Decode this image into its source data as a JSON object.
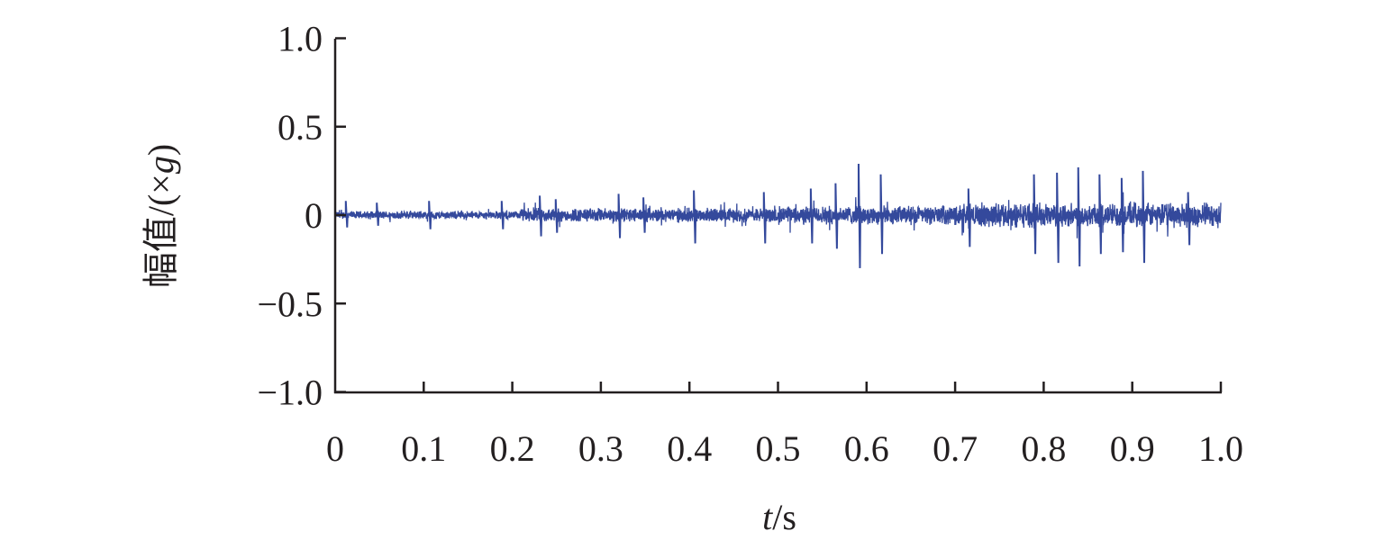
{
  "chart_data": {
    "type": "line",
    "title": "",
    "xlabel": "t/s",
    "xlabel_parts": {
      "var": "t",
      "unit": "/s"
    },
    "ylabel": "幅值/(×g)",
    "ylabel_parts": {
      "text": "幅值/(×",
      "var": "g",
      "close": ")"
    },
    "xlim": [
      0,
      1.0
    ],
    "ylim": [
      -1.0,
      1.0
    ],
    "x_ticks": [
      "0",
      "0.1",
      "0.2",
      "0.3",
      "0.4",
      "0.5",
      "0.6",
      "0.7",
      "0.8",
      "0.9",
      "1.0"
    ],
    "y_ticks": [
      "1.0",
      "0.5",
      "0",
      "−0.5",
      "−1.0"
    ],
    "grid": false,
    "legend": "none",
    "series_color": "#34499c",
    "baseline_envelope": [
      {
        "t_start": 0.0,
        "t_end": 0.21,
        "amplitude": 0.02
      },
      {
        "t_start": 0.21,
        "t_end": 0.5,
        "amplitude": 0.035
      },
      {
        "t_start": 0.5,
        "t_end": 0.7,
        "amplitude": 0.045
      },
      {
        "t_start": 0.7,
        "t_end": 1.0,
        "amplitude": 0.06
      }
    ],
    "peaks": [
      {
        "t": 0.012,
        "max": 0.08,
        "min": -0.07
      },
      {
        "t": 0.047,
        "max": 0.07,
        "min": -0.06
      },
      {
        "t": 0.106,
        "max": 0.08,
        "min": -0.08
      },
      {
        "t": 0.188,
        "max": 0.08,
        "min": -0.08
      },
      {
        "t": 0.231,
        "max": 0.11,
        "min": -0.12
      },
      {
        "t": 0.249,
        "max": 0.09,
        "min": -0.1
      },
      {
        "t": 0.32,
        "max": 0.12,
        "min": -0.13
      },
      {
        "t": 0.348,
        "max": 0.1,
        "min": -0.1
      },
      {
        "t": 0.405,
        "max": 0.14,
        "min": -0.16
      },
      {
        "t": 0.484,
        "max": 0.13,
        "min": -0.16
      },
      {
        "t": 0.537,
        "max": 0.15,
        "min": -0.16
      },
      {
        "t": 0.565,
        "max": 0.18,
        "min": -0.19
      },
      {
        "t": 0.591,
        "max": 0.29,
        "min": -0.3
      },
      {
        "t": 0.616,
        "max": 0.23,
        "min": -0.22
      },
      {
        "t": 0.715,
        "max": 0.15,
        "min": -0.18
      },
      {
        "t": 0.789,
        "max": 0.23,
        "min": -0.22
      },
      {
        "t": 0.815,
        "max": 0.24,
        "min": -0.27
      },
      {
        "t": 0.839,
        "max": 0.27,
        "min": -0.29
      },
      {
        "t": 0.863,
        "max": 0.23,
        "min": -0.22
      },
      {
        "t": 0.888,
        "max": 0.21,
        "min": -0.21
      },
      {
        "t": 0.912,
        "max": 0.25,
        "min": -0.27
      },
      {
        "t": 0.963,
        "max": 0.13,
        "min": -0.17
      }
    ]
  }
}
